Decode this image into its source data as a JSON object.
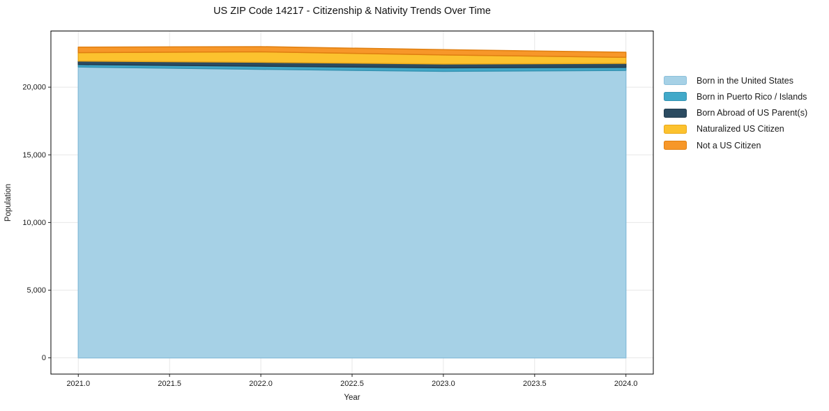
{
  "chart_data": {
    "type": "area",
    "stacked": true,
    "title": "US ZIP Code 14217 - Citizenship & Nativity Trends Over Time",
    "xlabel": "Year",
    "ylabel": "Population",
    "x": [
      2021,
      2022,
      2023,
      2024
    ],
    "series": [
      {
        "name": "Born in the United States",
        "color": "#a6d1e6",
        "edge": "#8cc0db",
        "values": [
          21490,
          21320,
          21170,
          21240
        ]
      },
      {
        "name": "Born in Puerto Rico / Islands",
        "color": "#41a9c9",
        "edge": "#3593b2",
        "values": [
          180,
          230,
          260,
          220
        ]
      },
      {
        "name": "Born Abroad of US Parent(s)",
        "color": "#2b4b61",
        "edge": "#223c4e",
        "values": [
          260,
          290,
          280,
          295
        ]
      },
      {
        "name": "Naturalized US Citizen",
        "color": "#fcc22e",
        "edge": "#e9a81a",
        "values": [
          620,
          775,
          670,
          450
        ]
      },
      {
        "name": "Not a US Citizen",
        "color": "#f79729",
        "edge": "#e07f10",
        "values": [
          410,
          380,
          390,
          375
        ]
      }
    ],
    "totals": [
      22960,
      22995,
      22770,
      22580
    ],
    "xlim": [
      2020.85,
      2024.15
    ],
    "ylim": [
      -1200,
      24150
    ],
    "xticks": {
      "values": [
        2021,
        2021.5,
        2022,
        2022.5,
        2023,
        2023.5,
        2024
      ],
      "labels": [
        "2021.0",
        "2021.5",
        "2022.0",
        "2022.5",
        "2023.0",
        "2023.5",
        "2024.0"
      ]
    },
    "yticks": {
      "values": [
        0,
        5000,
        10000,
        15000,
        20000
      ],
      "labels": [
        "0",
        "5,000",
        "10,000",
        "15,000",
        "20,000"
      ]
    },
    "grid": true,
    "legend_position": "right",
    "colors": {
      "grid": "#e7e7e7",
      "spine": "#000000",
      "tick": "#222222",
      "text": "#1a1a1a",
      "background": "#ffffff"
    }
  }
}
